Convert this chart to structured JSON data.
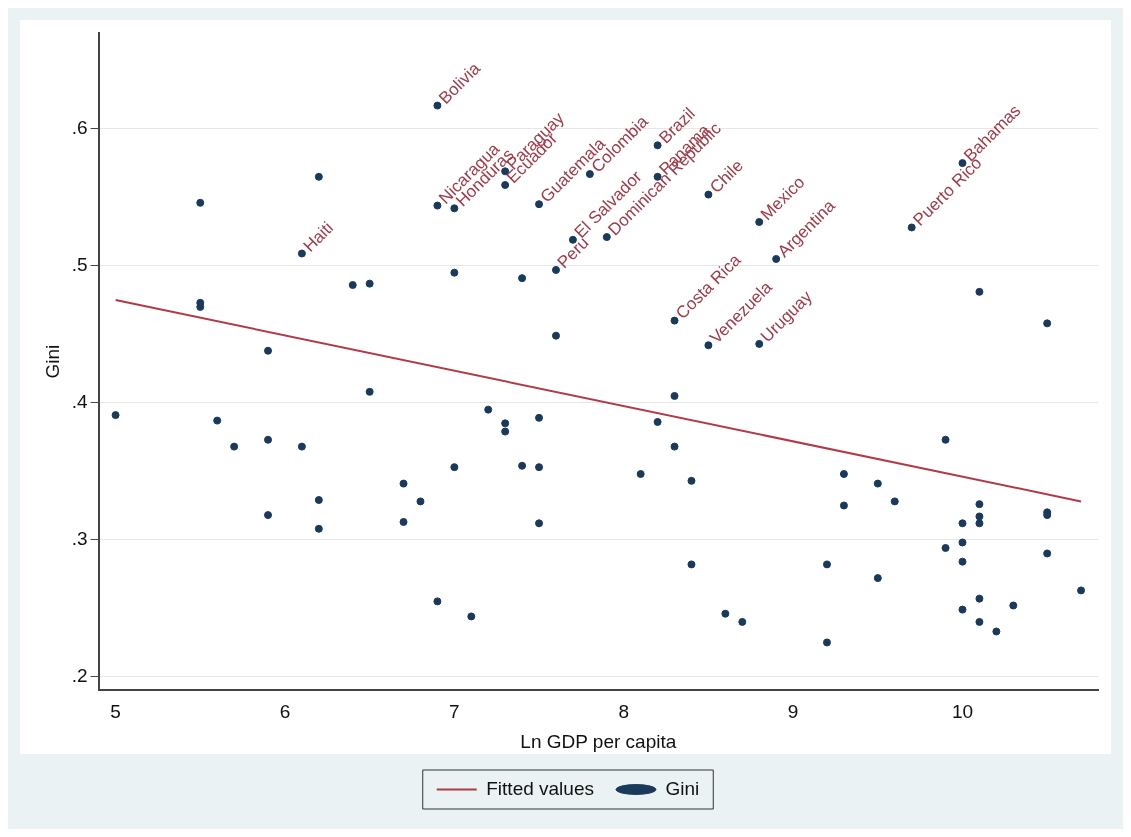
{
  "chart_data": {
    "type": "scatter",
    "xlabel": "Ln GDP per capita",
    "ylabel": "Gini",
    "xlim": [
      4.9,
      10.8
    ],
    "ylim": [
      0.19,
      0.67
    ],
    "xticks": [
      5,
      6,
      7,
      8,
      9,
      10
    ],
    "yticks": [
      {
        "value": 0.2,
        "label": ".2"
      },
      {
        "value": 0.3,
        "label": ".3"
      },
      {
        "value": 0.4,
        "label": ".4"
      },
      {
        "value": 0.5,
        "label": ".5"
      },
      {
        "value": 0.6,
        "label": ".6"
      }
    ],
    "grid": "y",
    "legend": "bottom",
    "series": [
      {
        "name": "Fitted values",
        "type": "line",
        "color": "#b03a48",
        "x": [
          5,
          10.7
        ],
        "values": [
          0.475,
          0.328
        ]
      },
      {
        "name": "Gini",
        "type": "scatter",
        "marker": "circle",
        "color": "#1a3a5c",
        "x": [
          6.9,
          6.1,
          6.9,
          7.0,
          7.3,
          7.3,
          7.5,
          7.8,
          8.2,
          8.2,
          7.7,
          7.6,
          7.9,
          8.5,
          8.8,
          8.9,
          8.3,
          8.5,
          8.8,
          10.0,
          9.7,
          5.5,
          6.2,
          5.5,
          5.5,
          6.4,
          6.5,
          7.0,
          7.4,
          7.6,
          5.9,
          10.1,
          10.5,
          5.0,
          5.6,
          5.7,
          5.9,
          6.1,
          6.5,
          5.9,
          6.2,
          6.2,
          6.7,
          6.8,
          6.7,
          7.0,
          6.9,
          7.1,
          7.2,
          7.3,
          7.3,
          7.5,
          7.4,
          7.5,
          7.5,
          8.3,
          8.2,
          8.3,
          8.1,
          8.4,
          8.4,
          8.6,
          8.7,
          9.2,
          9.2,
          9.3,
          9.3,
          9.5,
          9.6,
          9.5,
          9.9,
          9.9,
          10.0,
          10.0,
          10.0,
          10.0,
          10.1,
          10.1,
          10.1,
          10.1,
          10.1,
          10.2,
          10.3,
          10.5,
          10.5,
          10.5,
          10.7
        ],
        "values": [
          0.617,
          0.509,
          0.544,
          0.542,
          0.569,
          0.559,
          0.545,
          0.567,
          0.588,
          0.565,
          0.519,
          0.497,
          0.521,
          0.552,
          0.532,
          0.505,
          0.46,
          0.442,
          0.443,
          0.575,
          0.528,
          0.546,
          0.565,
          0.473,
          0.47,
          0.486,
          0.487,
          0.495,
          0.491,
          0.449,
          0.438,
          0.481,
          0.458,
          0.391,
          0.387,
          0.368,
          0.373,
          0.368,
          0.408,
          0.318,
          0.329,
          0.308,
          0.341,
          0.328,
          0.313,
          0.353,
          0.255,
          0.244,
          0.395,
          0.385,
          0.379,
          0.389,
          0.354,
          0.353,
          0.312,
          0.405,
          0.386,
          0.368,
          0.348,
          0.343,
          0.282,
          0.246,
          0.24,
          0.282,
          0.225,
          0.348,
          0.325,
          0.341,
          0.328,
          0.272,
          0.373,
          0.294,
          0.312,
          0.298,
          0.284,
          0.249,
          0.326,
          0.317,
          0.312,
          0.257,
          0.24,
          0.233,
          0.252,
          0.32,
          0.318,
          0.29,
          0.263
        ],
        "value_labels": [
          "Bolivia",
          "Haiti",
          "Nicaragua",
          "Honduras",
          "Paraguay",
          "Ecuador",
          "Guatemala",
          "Colombia",
          "Brazil",
          "Panama",
          "El Salvador",
          "Peru",
          "Dominican Republic",
          "Chile",
          "Mexico",
          "Argentina",
          "Costa Rica",
          "Venezuela",
          "Uruguay",
          "Bahamas",
          "Puerto Rico",
          null,
          null,
          null,
          null,
          null,
          null,
          null,
          null,
          null,
          null,
          null,
          null,
          null,
          null,
          null,
          null,
          null,
          null,
          null,
          null,
          null,
          null,
          null,
          null,
          null,
          null,
          null,
          null,
          null,
          null,
          null,
          null,
          null,
          null,
          null,
          null,
          null,
          null,
          null,
          null,
          null,
          null,
          null,
          null,
          null,
          null,
          null,
          null,
          null,
          null,
          null,
          null,
          null,
          null,
          null,
          null,
          null,
          null,
          null,
          null,
          null,
          null,
          null,
          null,
          null,
          null
        ]
      }
    ]
  }
}
